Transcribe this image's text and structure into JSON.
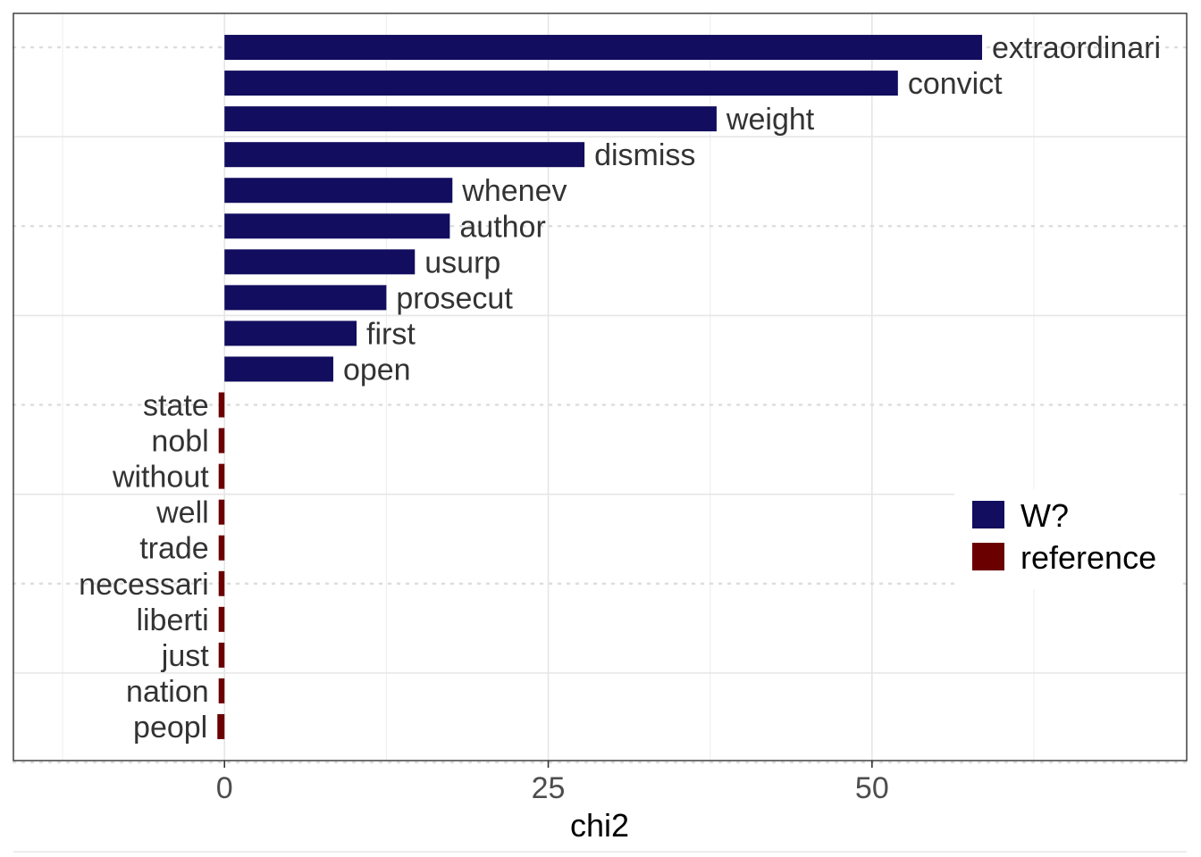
{
  "chart_data": {
    "type": "bar",
    "orientation": "horizontal",
    "xlabel": "chi2",
    "ylabel": "",
    "xlim": [
      -16.3,
      74.3
    ],
    "x_ticks": [
      0,
      25,
      50
    ],
    "x_tick_labels": [
      "0",
      "25",
      "50"
    ],
    "grid": true,
    "legend_position": "right",
    "colors": {
      "W?": "#120d5e",
      "reference": "#6b0000"
    },
    "legend": [
      {
        "name": "W?",
        "color": "#120d5e"
      },
      {
        "name": "reference",
        "color": "#6b0000"
      }
    ],
    "bars": [
      {
        "term": "extraordinari",
        "chi2": 58.5,
        "group": "W?"
      },
      {
        "term": "convict",
        "chi2": 52.0,
        "group": "W?"
      },
      {
        "term": "weight",
        "chi2": 38.0,
        "group": "W?"
      },
      {
        "term": "dismiss",
        "chi2": 27.8,
        "group": "W?"
      },
      {
        "term": "whenev",
        "chi2": 17.6,
        "group": "W?"
      },
      {
        "term": "author",
        "chi2": 17.4,
        "group": "W?"
      },
      {
        "term": "usurp",
        "chi2": 14.7,
        "group": "W?"
      },
      {
        "term": "prosecut",
        "chi2": 12.5,
        "group": "W?"
      },
      {
        "term": "first",
        "chi2": 10.2,
        "group": "W?"
      },
      {
        "term": "open",
        "chi2": 8.4,
        "group": "W?"
      },
      {
        "term": "state",
        "chi2": -0.45,
        "group": "reference"
      },
      {
        "term": "nobl",
        "chi2": -0.45,
        "group": "reference"
      },
      {
        "term": "without",
        "chi2": -0.45,
        "group": "reference"
      },
      {
        "term": "well",
        "chi2": -0.45,
        "group": "reference"
      },
      {
        "term": "trade",
        "chi2": -0.45,
        "group": "reference"
      },
      {
        "term": "necessari",
        "chi2": -0.45,
        "group": "reference"
      },
      {
        "term": "liberti",
        "chi2": -0.45,
        "group": "reference"
      },
      {
        "term": "just",
        "chi2": -0.45,
        "group": "reference"
      },
      {
        "term": "nation",
        "chi2": -0.45,
        "group": "reference"
      },
      {
        "term": "peopl",
        "chi2": -0.55,
        "group": "reference"
      }
    ]
  }
}
